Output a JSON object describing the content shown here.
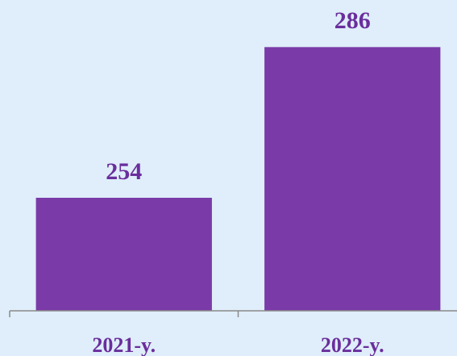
{
  "chart_data": {
    "type": "bar",
    "categories": [
      "2021-y.",
      "2022-y."
    ],
    "values": [
      254,
      286
    ],
    "color": "#7a3aa8",
    "ylim": [
      230,
      296
    ],
    "grid": false
  }
}
